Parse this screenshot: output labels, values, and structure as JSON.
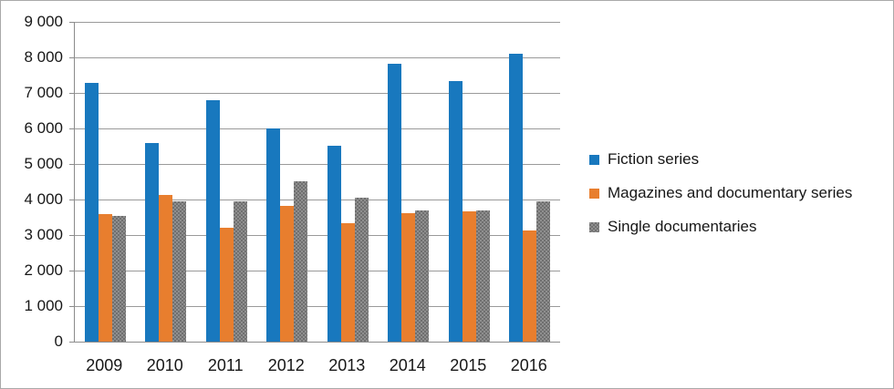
{
  "figure": {
    "background": "#ffffff",
    "frame_border_color": "#a9a9a9",
    "axis_line_color": "#8b8b8b",
    "gridline_color": "#9a9a9a",
    "text_color": "#171717"
  },
  "chart_data": {
    "type": "bar",
    "title": "",
    "xlabel": "",
    "ylabel": "",
    "grid": true,
    "legend_position": "right",
    "ylim": [
      0,
      9000
    ],
    "ytick_step": 1000,
    "ytick_labels": [
      "0",
      "1 000",
      "2 000",
      "3 000",
      "4 000",
      "5 000",
      "6 000",
      "7 000",
      "8 000",
      "9 000"
    ],
    "categories": [
      "2009",
      "2010",
      "2011",
      "2012",
      "2013",
      "2014",
      "2015",
      "2016"
    ],
    "series": [
      {
        "name": "Fiction series",
        "color": "#1878be",
        "pattern": "solid",
        "values": [
          7270,
          5600,
          6790,
          6000,
          5520,
          7830,
          7330,
          8090
        ]
      },
      {
        "name": "Magazines and documentary series",
        "color": "#e87e2e",
        "pattern": "solid",
        "values": [
          3580,
          4130,
          3210,
          3820,
          3330,
          3620,
          3660,
          3120
        ]
      },
      {
        "name": "Single documentaries",
        "color": "#8f8f8f",
        "pattern": "dither",
        "values": [
          3550,
          3950,
          3950,
          4510,
          4060,
          3700,
          3690,
          3950
        ]
      }
    ]
  }
}
